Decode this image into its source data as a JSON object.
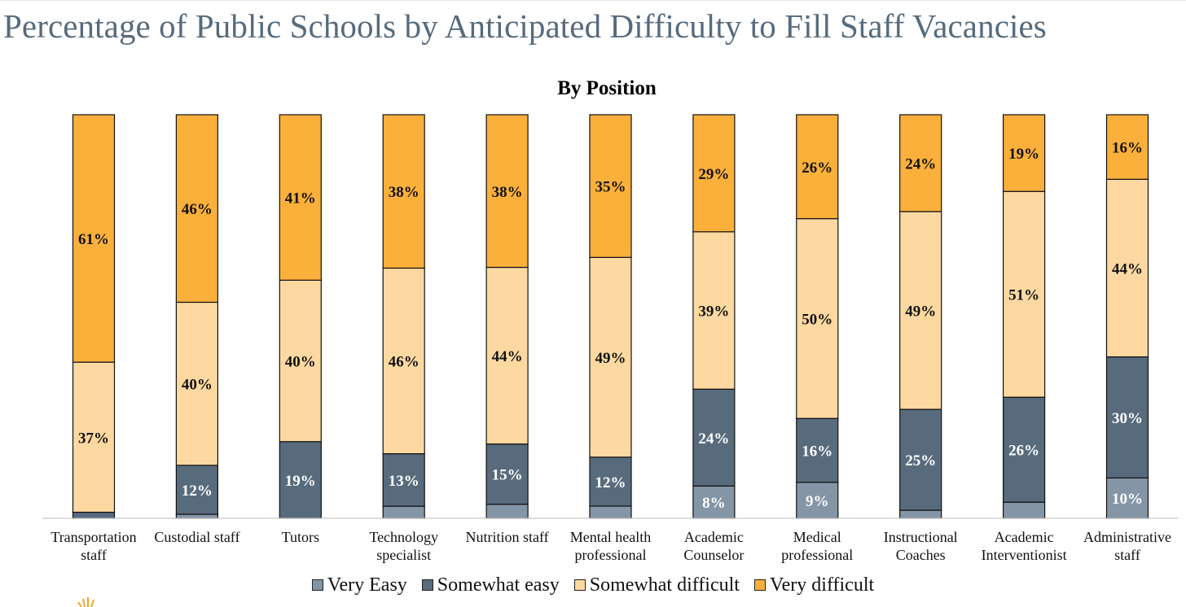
{
  "page": {
    "title": "Percentage of Public Schools by Anticipated Difficulty to Fill Staff Vacancies"
  },
  "colors": {
    "very_easy": "#8495a6",
    "somewhat_easy": "#586b7d",
    "somewhat_difficult": "#fdd9a1",
    "very_difficult": "#fbb03b",
    "bar_outline": "#111111",
    "title": "#566b7d"
  },
  "chart_data": {
    "type": "bar",
    "stacked": true,
    "title": "By Position",
    "xlabel": "",
    "ylabel": "",
    "ylim": [
      0,
      100
    ],
    "grid": false,
    "legend_position": "bottom",
    "categories": [
      [
        "Transportation",
        "staff"
      ],
      [
        "Custodial staff"
      ],
      [
        "Tutors"
      ],
      [
        "Technology",
        "specialist"
      ],
      [
        "Nutrition staff"
      ],
      [
        "Mental health",
        "professional"
      ],
      [
        "Academic",
        "Counselor"
      ],
      [
        "Medical",
        "professional"
      ],
      [
        "Instructional",
        "Coaches"
      ],
      [
        "Academic",
        "Interventionist"
      ],
      [
        "Administrative",
        "staff"
      ]
    ],
    "series": [
      {
        "name": "Very Easy",
        "color_key": "very_easy",
        "values": [
          0,
          1,
          0,
          3,
          3.5,
          3,
          8,
          9,
          2,
          4,
          10
        ],
        "labels": [
          "",
          "",
          "",
          "",
          "",
          "",
          "8%",
          "9%",
          "",
          "",
          "10%"
        ]
      },
      {
        "name": "Somewhat easy",
        "color_key": "somewhat_easy",
        "values": [
          1.5,
          12,
          19,
          13,
          15,
          12,
          24,
          16,
          25,
          26,
          30
        ],
        "labels": [
          "",
          "12%",
          "19%",
          "13%",
          "15%",
          "12%",
          "24%",
          "16%",
          "25%",
          "26%",
          "30%"
        ]
      },
      {
        "name": "Somewhat difficult",
        "color_key": "somewhat_difficult",
        "values": [
          37,
          40,
          40,
          46,
          44,
          49,
          39,
          50,
          49,
          51,
          44
        ],
        "labels": [
          "37%",
          "40%",
          "40%",
          "46%",
          "44%",
          "49%",
          "39%",
          "50%",
          "49%",
          "51%",
          "44%"
        ]
      },
      {
        "name": "Very difficult",
        "color_key": "very_difficult",
        "values": [
          61,
          46,
          41,
          38,
          38,
          35,
          29,
          26,
          24,
          19,
          16
        ],
        "labels": [
          "61%",
          "46%",
          "41%",
          "38%",
          "38%",
          "35%",
          "29%",
          "26%",
          "24%",
          "19%",
          "16%"
        ]
      }
    ]
  }
}
